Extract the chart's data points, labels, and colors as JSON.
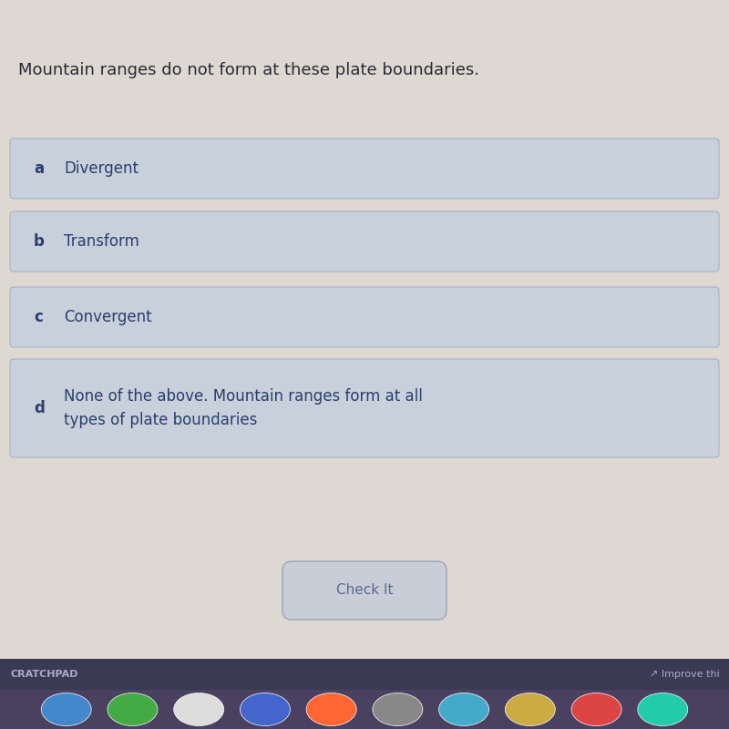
{
  "title": "Mountain ranges do not form at these plate boundaries.",
  "title_fontsize": 13,
  "title_color": "#2a2a35",
  "background_color": "#ddd8d2",
  "option_box_color": "#c8d0dc",
  "option_box_edge_color": "#a8b4c4",
  "option_letter_color": "#2c3e6b",
  "option_text_color": "#2c3e6b",
  "option_letter_fontsize": 12,
  "option_text_fontsize": 12,
  "options": [
    {
      "letter": "a",
      "text": "Divergent"
    },
    {
      "letter": "b",
      "text": "Transform"
    },
    {
      "letter": "c",
      "text": "Convergent"
    },
    {
      "letter": "d",
      "text": "None of the above. Mountain ranges form at all\ntypes of plate boundaries"
    }
  ],
  "button_text": "Check It",
  "button_color": "#c8cdd8",
  "button_edge_color": "#9aa5b8",
  "button_text_color": "#5a6a8a",
  "footer_bar_color": "#3a3a55",
  "footer_text": "CRATCHPAD",
  "footer_text_color": "#aaaacc",
  "taskbar_color": "#4a4060",
  "improve_text": "↗ Improve thi",
  "improve_text_color": "#aaaacc"
}
